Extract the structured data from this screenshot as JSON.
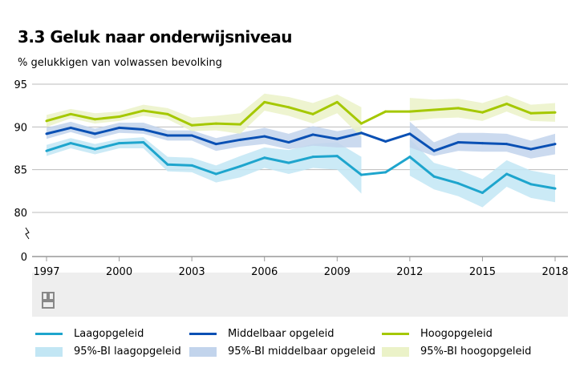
{
  "title": "3.3 Geluk naar onderwijsniveau",
  "subtitle": "% gelukkigen van volwassen bevolking",
  "chart_data": {
    "type": "line",
    "title": "3.3 Geluk naar onderwijsniveau",
    "ylabel": "% gelukkigen van volwassen bevolking",
    "x": [
      1997,
      1998,
      1999,
      2000,
      2001,
      2002,
      2003,
      2004,
      2005,
      2006,
      2007,
      2008,
      2009,
      2010,
      2011,
      2012,
      2013,
      2014,
      2015,
      2016,
      2017,
      2018
    ],
    "x_ticks": [
      "1997",
      "2000",
      "2003",
      "2006",
      "2009",
      "2012",
      "2015",
      "2018"
    ],
    "y_ticks": [
      "0",
      "80",
      "85",
      "90",
      "95"
    ],
    "ylim": [
      80,
      95
    ],
    "y_axis_break": true,
    "grid": true,
    "legend_position": "bottom",
    "series": [
      {
        "name": "Laagopgeleid",
        "color": "#1ea5cd",
        "band_name": "95%-BI laagopgeleid",
        "band_color": "#c2e6f4",
        "values": [
          87.2,
          88.1,
          87.4,
          88.1,
          88.2,
          85.6,
          85.5,
          84.5,
          85.4,
          86.4,
          85.8,
          86.5,
          86.6,
          84.4,
          84.7,
          86.5,
          84.2,
          83.4,
          82.3,
          84.5,
          83.3,
          82.8
        ],
        "lower": [
          86.6,
          87.5,
          86.8,
          87.5,
          87.5,
          84.8,
          84.7,
          83.5,
          84.1,
          85.2,
          84.5,
          85.2,
          85.0,
          82.2,
          null,
          84.3,
          82.7,
          81.9,
          80.6,
          83.0,
          81.7,
          81.2
        ],
        "upper": [
          87.9,
          88.7,
          88.0,
          88.6,
          88.8,
          86.5,
          86.4,
          85.5,
          86.6,
          87.6,
          87.3,
          88.0,
          88.2,
          86.5,
          null,
          88.6,
          85.8,
          85.0,
          83.9,
          86.1,
          84.9,
          84.4
        ]
      },
      {
        "name": "Middelbaar opgeleid",
        "color": "#0a50b4",
        "band_name": "95%-BI middelbaar opgeleid",
        "band_color": "#c2d4ec",
        "values": [
          89.2,
          89.9,
          89.2,
          89.9,
          89.7,
          89.0,
          89.0,
          88.0,
          88.5,
          88.9,
          88.2,
          89.1,
          88.6,
          89.3,
          88.3,
          89.2,
          87.2,
          88.2,
          88.1,
          88.0,
          87.4,
          88.0
        ],
        "lower": [
          88.6,
          89.4,
          88.6,
          89.3,
          89.2,
          88.4,
          88.4,
          87.2,
          87.7,
          88.0,
          87.4,
          87.8,
          87.6,
          87.6,
          null,
          87.6,
          86.6,
          87.2,
          87.1,
          87.1,
          86.3,
          86.8
        ],
        "upper": [
          89.9,
          90.6,
          89.8,
          90.5,
          90.5,
          89.6,
          89.6,
          88.7,
          89.3,
          89.9,
          89.2,
          90.1,
          89.5,
          90.0,
          null,
          90.6,
          88.2,
          89.3,
          89.3,
          89.2,
          88.4,
          89.2
        ]
      },
      {
        "name": "Hoogopgeleid",
        "color": "#a5c800",
        "band_name": "95%-BI hoogopgeleid",
        "band_color": "#ebf2c8",
        "values": [
          90.7,
          91.5,
          90.9,
          91.2,
          91.9,
          91.5,
          90.2,
          90.4,
          90.3,
          92.9,
          92.3,
          91.5,
          92.9,
          90.4,
          91.8,
          91.8,
          92.0,
          92.2,
          91.7,
          92.7,
          91.6,
          91.7
        ],
        "lower": [
          90.0,
          91.0,
          90.4,
          90.7,
          91.3,
          90.9,
          89.5,
          89.6,
          89.2,
          91.9,
          91.3,
          90.4,
          91.6,
          88.8,
          null,
          90.7,
          91.0,
          91.1,
          90.7,
          91.8,
          90.7,
          90.6
        ],
        "upper": [
          91.4,
          92.1,
          91.6,
          91.8,
          92.6,
          92.2,
          91.1,
          91.3,
          91.6,
          93.9,
          93.5,
          92.8,
          93.8,
          92.3,
          null,
          93.4,
          93.2,
          93.3,
          92.8,
          93.7,
          92.6,
          92.8
        ]
      }
    ]
  }
}
